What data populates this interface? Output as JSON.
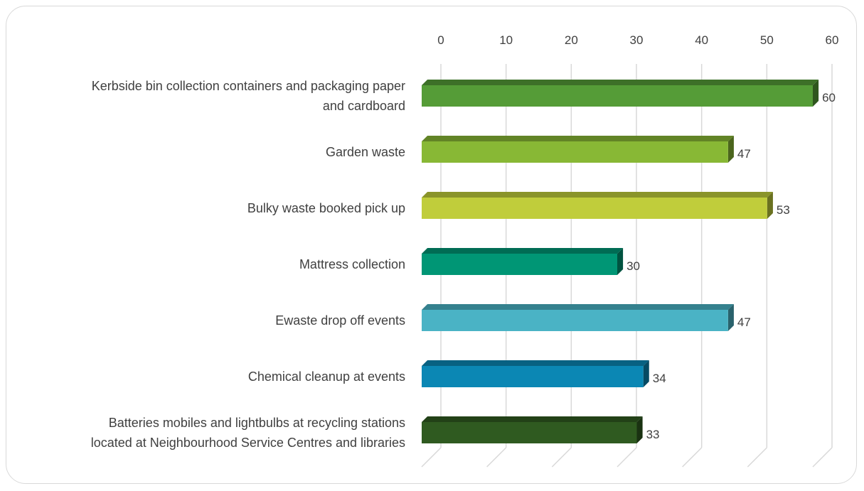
{
  "chart_data": {
    "type": "bar",
    "orientation": "horizontal",
    "style": "3d",
    "categories": [
      [
        "Kerbside bin collection containers and packaging paper",
        "and cardboard"
      ],
      [
        "Garden waste"
      ],
      [
        "Bulky waste booked pick up"
      ],
      [
        "Mattress collection"
      ],
      [
        "Ewaste drop off events"
      ],
      [
        "Chemical cleanup at events"
      ],
      [
        "Batteries mobiles and lightbulbs at recycling stations",
        "located at Neighbourhood Service Centres and libraries"
      ]
    ],
    "values": [
      60,
      47,
      53,
      30,
      47,
      34,
      33
    ],
    "colors": [
      "#559C37",
      "#88B835",
      "#C0CD3B",
      "#009675",
      "#4AB3C5",
      "#0B87B4",
      "#2F5A20"
    ],
    "xlim": [
      0,
      60
    ],
    "ticks": [
      "0",
      "10",
      "20",
      "30",
      "40",
      "50",
      "60"
    ],
    "axis_position": "top",
    "grid": true,
    "legend": "none",
    "title": "",
    "xlabel": "",
    "ylabel": ""
  }
}
